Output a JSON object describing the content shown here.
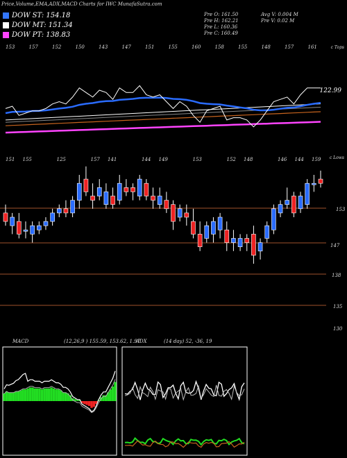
{
  "header": {
    "title": "Price,Volume,EMA,ADX,MACD Charts for IWC MunafaSutra.com"
  },
  "legend": [
    {
      "label": "DOW ST: 154.18",
      "color": "#3377ff"
    },
    {
      "label": "DOW MT: 151.34",
      "color": "#ffffff"
    },
    {
      "label": "DOW PT: 138.83",
      "color": "#ff44ff"
    }
  ],
  "info": {
    "prev_open": "Pre O: 161.50",
    "prev_high": "Pre H: 162.21",
    "prev_low": "Pre L: 160.36",
    "prev_close": "Pre C: 160.49",
    "avg_volume": "Avg V: 0.004 M",
    "prev_volume": "Pre V: 0.02 M"
  },
  "ema_panel": {
    "top_labels": [
      "153",
      "157",
      "152",
      "150",
      "143",
      "147",
      "151",
      "155",
      "160",
      "158",
      "155",
      "148",
      "157",
      "161"
    ],
    "right_tag": "c Tops",
    "last_price_label": "122.99",
    "lines": [
      {
        "name": "ema-blue",
        "color": "#2a6cff"
      },
      {
        "name": "ema-white",
        "color": "#ffffff"
      },
      {
        "name": "ema-gray",
        "color": "#888888"
      },
      {
        "name": "ema-orange",
        "color": "#c8641e"
      },
      {
        "name": "ema-magenta",
        "color": "#ff44ff"
      }
    ]
  },
  "price_panel": {
    "top_labels": [
      "151",
      "155",
      "",
      "125",
      "",
      "157",
      "141",
      "",
      "144",
      "149",
      "",
      "153",
      "",
      "152",
      "148",
      "",
      "146",
      "144",
      "159"
    ],
    "right_tag": "c Lows",
    "level_labels": [
      "153",
      "147",
      "138",
      "135",
      "130"
    ],
    "up_color": "#2a6cff",
    "down_color": "#ee2222"
  },
  "macd": {
    "label": "MACD",
    "values": "(12,26,9 ) 155.59, 153.62, 1.97"
  },
  "adx": {
    "label": "ADX",
    "values": "(14 day) 52, -36, 19"
  },
  "chart_data": {
    "type": "candlestick",
    "ohlc": [
      [
        154,
        156,
        151,
        152
      ],
      [
        151,
        154,
        149,
        153
      ],
      [
        152,
        154,
        148,
        149
      ],
      [
        150,
        152,
        148,
        150
      ],
      [
        149,
        152,
        147,
        151
      ],
      [
        150,
        152,
        149,
        151
      ],
      [
        151,
        153,
        150,
        152
      ],
      [
        152,
        155,
        151,
        154
      ],
      [
        154,
        156,
        153,
        155
      ],
      [
        155,
        157,
        153,
        154
      ],
      [
        154,
        158,
        153,
        157
      ],
      [
        157,
        163,
        155,
        161
      ],
      [
        162,
        165,
        158,
        159
      ],
      [
        158,
        161,
        155,
        157
      ],
      [
        158,
        162,
        157,
        160
      ],
      [
        156,
        161,
        155,
        159
      ],
      [
        158,
        160,
        155,
        156
      ],
      [
        157,
        163,
        156,
        161
      ],
      [
        160,
        162,
        158,
        159
      ],
      [
        160,
        161,
        157,
        159
      ],
      [
        158,
        163,
        157,
        162
      ],
      [
        161,
        162,
        157,
        158
      ],
      [
        158,
        160,
        155,
        157
      ],
      [
        156,
        160,
        155,
        158
      ],
      [
        157,
        159,
        154,
        155
      ],
      [
        156,
        157,
        150,
        152
      ],
      [
        153,
        156,
        152,
        155
      ],
      [
        154,
        156,
        151,
        153
      ],
      [
        152,
        155,
        148,
        149
      ],
      [
        149,
        152,
        145,
        146
      ],
      [
        148,
        152,
        147,
        151
      ],
      [
        149,
        153,
        147,
        152
      ],
      [
        150,
        154,
        148,
        153
      ],
      [
        150,
        152,
        145,
        147
      ],
      [
        147,
        150,
        145,
        148
      ],
      [
        146,
        149,
        145,
        148
      ],
      [
        148,
        149,
        145,
        147
      ],
      [
        149,
        151,
        142,
        144
      ],
      [
        145,
        148,
        143,
        147
      ],
      [
        148,
        152,
        147,
        151
      ],
      [
        150,
        156,
        149,
        155
      ],
      [
        154,
        157,
        153,
        156
      ],
      [
        156,
        160,
        155,
        157
      ],
      [
        158,
        159,
        153,
        154
      ],
      [
        155,
        159,
        154,
        158
      ],
      [
        156,
        162,
        155,
        161
      ],
      [
        161,
        163,
        159,
        161
      ],
      [
        162,
        164,
        160,
        161
      ]
    ],
    "close_series": [
      152,
      153,
      149,
      150,
      151,
      151,
      152,
      154,
      155,
      154,
      157,
      161,
      159,
      157,
      160,
      159,
      156,
      161,
      159,
      159,
      162,
      158,
      157,
      158,
      155,
      152,
      155,
      153,
      149,
      146,
      151,
      152,
      153,
      147,
      148,
      148,
      147,
      144,
      147,
      151,
      155,
      156,
      157,
      154,
      158,
      161,
      161,
      161
    ],
    "ema_fast": [
      150,
      150.5,
      150.6,
      150.7,
      150.9,
      151,
      151.2,
      151.6,
      152,
      152.3,
      152.8,
      153.6,
      154.1,
      154.4,
      154.9,
      155.2,
      155.3,
      155.8,
      156,
      156.2,
      156.6,
      156.7,
      156.7,
      156.8,
      156.6,
      156.2,
      156.1,
      155.8,
      155.2,
      154.4,
      154.1,
      153.9,
      153.8,
      153.3,
      152.9,
      152.5,
      152.1,
      151.5,
      151.2,
      151.2,
      151.5,
      151.9,
      152.3,
      152.5,
      153,
      153.6,
      154.1,
      154.5
    ],
    "macd_histogram": [
      0.8,
      1.0,
      0.9,
      0.9,
      0.9,
      1.0,
      1.0,
      1.1,
      1.2,
      1.2,
      1.3,
      1.4,
      1.4,
      1.3,
      1.3,
      1.3,
      1.2,
      1.3,
      1.3,
      1.3,
      1.4,
      1.3,
      1.2,
      1.2,
      1.1,
      0.9,
      0.9,
      0.8,
      0.6,
      0.3,
      0.2,
      0.1,
      0.1,
      -0.2,
      -0.3,
      -0.4,
      -0.5,
      -0.7,
      -0.6,
      -0.3,
      0.1,
      0.4,
      0.6,
      0.6,
      0.9,
      1.2,
      1.5,
      1.97
    ]
  }
}
